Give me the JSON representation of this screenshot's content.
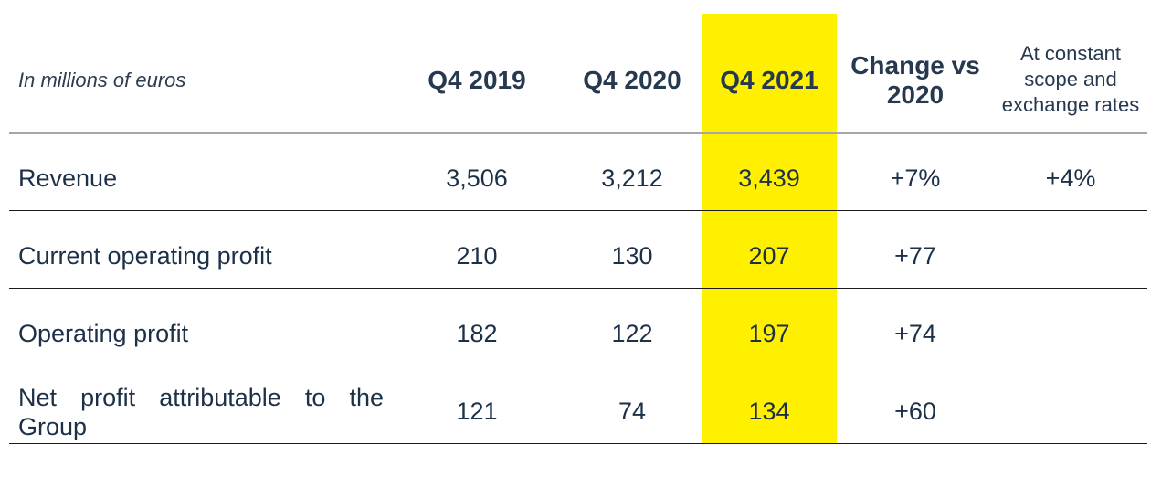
{
  "table": {
    "units_label": "In millions of euros",
    "columns": [
      "Q4 2019",
      "Q4 2020",
      "Q4 2021",
      "Change vs 2020",
      "At constant scope and exchange rates"
    ],
    "highlight_color": "#fff000",
    "rows": [
      {
        "label": "Revenue",
        "q4_2019": "3,506",
        "q4_2020": "3,212",
        "q4_2021": "3,439",
        "change": "+7%",
        "constant": "+4%"
      },
      {
        "label": "Current operating profit",
        "q4_2019": "210",
        "q4_2020": "130",
        "q4_2021": "207",
        "change": "+77",
        "constant": ""
      },
      {
        "label": "Operating profit",
        "q4_2019": "182",
        "q4_2020": "122",
        "q4_2021": "197",
        "change": "+74",
        "constant": ""
      },
      {
        "label": "Net profit attributable to the Group",
        "q4_2019": "121",
        "q4_2020": "74",
        "q4_2021": "134",
        "change": "+60",
        "constant": ""
      }
    ]
  }
}
